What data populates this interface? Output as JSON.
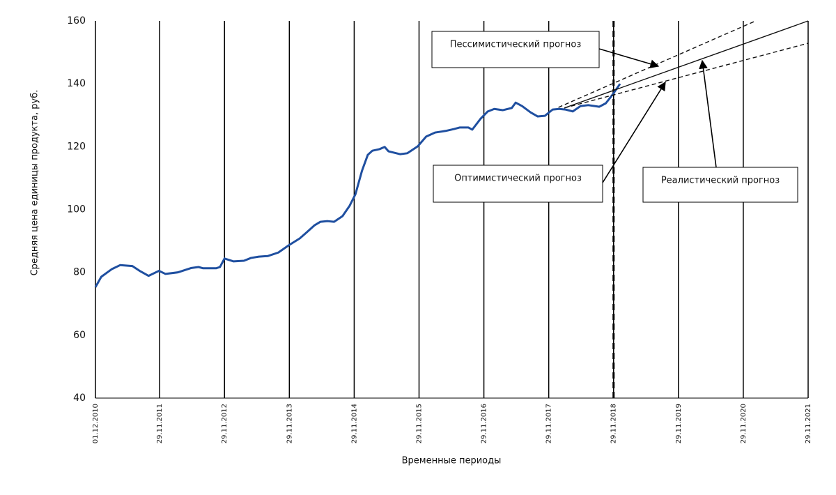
{
  "chart_data": {
    "type": "line",
    "y_label": "Средняя цена единицы продукта, руб.",
    "x_label": "Временные периоды",
    "ylim": [
      40,
      160
    ],
    "yticks": [
      40,
      60,
      80,
      100,
      120,
      140,
      160
    ],
    "xlim": [
      2010.92,
      2021.91
    ],
    "xticks": [
      {
        "value": 2010.92,
        "label": "01.12.2010"
      },
      {
        "value": 2011.91,
        "label": "29.11.2011"
      },
      {
        "value": 2012.91,
        "label": "29.11.2012"
      },
      {
        "value": 2013.91,
        "label": "29.11.2013"
      },
      {
        "value": 2014.91,
        "label": "29.11.2014"
      },
      {
        "value": 2015.91,
        "label": "29.11.2015"
      },
      {
        "value": 2016.91,
        "label": "29.11.2016"
      },
      {
        "value": 2017.91,
        "label": "29.11.2017"
      },
      {
        "value": 2018.91,
        "label": "29.11.2018"
      },
      {
        "value": 2019.91,
        "label": "29.11.2019"
      },
      {
        "value": 2020.91,
        "label": "29.11.2020"
      },
      {
        "value": 2021.91,
        "label": "29.11.2021"
      }
    ],
    "vertical_grid": true,
    "forecast_divider": 2018.91,
    "series": [
      {
        "color": "#1f4fa0",
        "style": "solid",
        "x": [
          2010.92,
          2011.01,
          2011.17,
          2011.3,
          2011.49,
          2011.6,
          2011.74,
          2011.9,
          2012.0,
          2012.19,
          2012.4,
          2012.51,
          2012.58,
          2012.78,
          2012.84,
          2012.91,
          2013.05,
          2013.21,
          2013.32,
          2013.44,
          2013.58,
          2013.74,
          2013.9,
          2014.07,
          2014.17,
          2014.3,
          2014.39,
          2014.5,
          2014.6,
          2014.73,
          2014.84,
          2014.93,
          2015.03,
          2015.12,
          2015.19,
          2015.3,
          2015.38,
          2015.44,
          2015.62,
          2015.73,
          2015.89,
          2016.02,
          2016.16,
          2016.32,
          2016.45,
          2016.54,
          2016.67,
          2016.73,
          2016.86,
          2016.97,
          2017.07,
          2017.2,
          2017.34,
          2017.4,
          2017.5,
          2017.63,
          2017.74,
          2017.85,
          2017.97,
          2018.07,
          2018.17,
          2018.28,
          2018.4,
          2018.52,
          2018.69,
          2018.79,
          2018.9,
          2019.01
        ],
        "values": [
          75.3,
          78.6,
          81,
          82.3,
          82,
          80.5,
          78.9,
          80.5,
          79.5,
          80,
          81.4,
          81.7,
          81.3,
          81.3,
          81.7,
          84.4,
          83.5,
          83.7,
          84.6,
          85,
          85.2,
          86.3,
          88.6,
          90.8,
          92.6,
          95,
          96.1,
          96.3,
          96.1,
          97.9,
          101.2,
          104.9,
          112.3,
          117.4,
          118.7,
          119.2,
          119.9,
          118.5,
          117.6,
          117.9,
          120.1,
          123.2,
          124.5,
          125,
          125.6,
          126.1,
          126.1,
          125.4,
          128.9,
          131.2,
          132,
          131.6,
          132.3,
          134,
          132.9,
          130.9,
          129.6,
          129.8,
          131.8,
          132,
          131.8,
          131.2,
          132.9,
          133.2,
          132.7,
          133.8,
          136.7,
          140
        ]
      },
      {
        "name": "Пессимистический прогноз",
        "color": "#111111",
        "style": "dashed",
        "x": [
          2018.06,
          2021.1
        ],
        "values": [
          132.5,
          160
        ]
      },
      {
        "name": "Оптимистический прогноз",
        "color": "#111111",
        "style": "dashed",
        "x": [
          2018.15,
          2021.91
        ],
        "values": [
          132.3,
          152.9
        ]
      },
      {
        "name": "Реалистический прогноз",
        "color": "#111111",
        "style": "solid",
        "x": [
          2018.15,
          2021.91
        ],
        "values": [
          132.3,
          160
        ]
      }
    ]
  }
}
